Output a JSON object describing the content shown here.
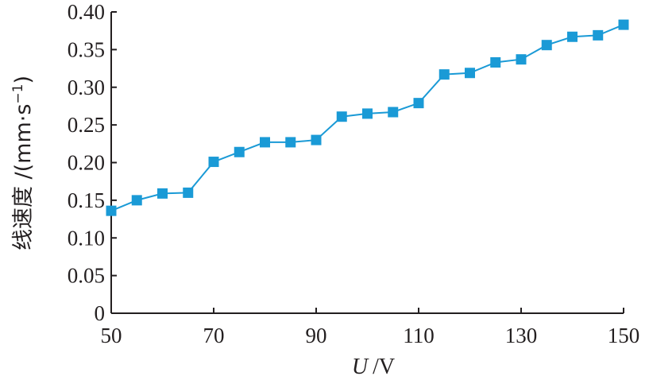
{
  "chart_data": {
    "type": "line",
    "xlabel_var": "U",
    "xlabel_unit": "/V",
    "ylabel": "线速度 /(mm·s",
    "ylabel_sup": "−1",
    "ylabel_close": ")",
    "xlim": [
      50,
      150
    ],
    "ylim": [
      0,
      0.4
    ],
    "xticks": [
      50,
      70,
      90,
      110,
      130,
      150
    ],
    "xtick_labels": [
      "50",
      "70",
      "90",
      "110",
      "130",
      "150"
    ],
    "yticks": [
      0,
      0.05,
      0.1,
      0.15,
      0.2,
      0.25,
      0.3,
      0.35,
      0.4
    ],
    "ytick_labels": [
      "0",
      "0.05",
      "0.10",
      "0.15",
      "0.20",
      "0.25",
      "0.30",
      "0.35",
      "0.40"
    ],
    "grid": false,
    "series": [
      {
        "color": "#1a9ad6",
        "marker": "square",
        "x": [
          50,
          55,
          60,
          65,
          70,
          75,
          80,
          85,
          90,
          95,
          100,
          105,
          110,
          115,
          120,
          125,
          130,
          135,
          140,
          145,
          150
        ],
        "y": [
          0.136,
          0.15,
          0.159,
          0.16,
          0.201,
          0.214,
          0.227,
          0.227,
          0.23,
          0.261,
          0.265,
          0.267,
          0.279,
          0.317,
          0.319,
          0.333,
          0.337,
          0.356,
          0.367,
          0.369,
          0.383
        ]
      }
    ]
  }
}
